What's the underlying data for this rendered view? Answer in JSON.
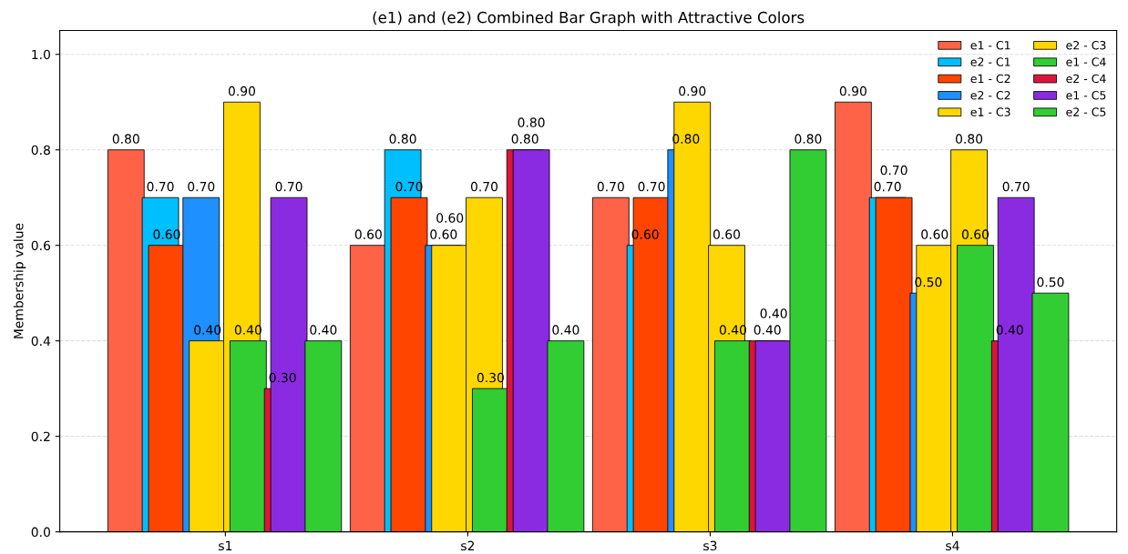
{
  "chart_data": {
    "type": "bar",
    "title": "(e1) and (e2) Combined Bar Graph with Attractive Colors",
    "ylabel": "Membership value",
    "categories": [
      "s1",
      "s2",
      "s3",
      "s4"
    ],
    "series": [
      {
        "name": "e1 - C1",
        "color": "#ff6347",
        "values": [
          0.8,
          0.6,
          0.7,
          0.9
        ],
        "value_labels": [
          "0.80",
          "0.60",
          "0.70",
          "0.90"
        ]
      },
      {
        "name": "e2 - C1",
        "color": "#00bfff",
        "values": [
          0.7,
          0.8,
          0.6,
          0.7
        ],
        "value_labels": [
          "0.70",
          "0.80",
          "0.60",
          "0.70"
        ]
      },
      {
        "name": "e1 - C2",
        "color": "#ff4500",
        "values": [
          0.6,
          0.7,
          0.7,
          0.7
        ],
        "value_labels": [
          "0.60",
          "0.70",
          "0.70",
          "0.70"
        ]
      },
      {
        "name": "e2 - C2",
        "color": "#1e90ff",
        "values": [
          0.7,
          0.6,
          0.8,
          0.5
        ],
        "value_labels": [
          "0.70",
          "0.60",
          "0.80",
          "0.50"
        ]
      },
      {
        "name": "e1 - C3",
        "color": "#ffd700",
        "values": [
          0.4,
          0.6,
          0.9,
          0.6
        ],
        "value_labels": [
          "0.40",
          "0.60",
          "0.90",
          "0.60"
        ]
      },
      {
        "name": "e2 - C3",
        "color": "#ffd700",
        "values": [
          0.9,
          0.7,
          0.6,
          0.8
        ],
        "value_labels": [
          "0.90",
          "0.70",
          "0.60",
          "0.80"
        ]
      },
      {
        "name": "e1 - C4",
        "color": "#32cd32",
        "values": [
          0.4,
          0.3,
          0.4,
          0.6
        ],
        "value_labels": [
          "0.40",
          "0.30",
          "0.40",
          "0.60"
        ]
      },
      {
        "name": "e2 - C4",
        "color": "#dc143c",
        "values": [
          0.3,
          0.8,
          0.4,
          0.4
        ],
        "value_labels": [
          "0.30",
          "0.80",
          "0.40",
          "0.40"
        ]
      },
      {
        "name": "e1 - C5",
        "color": "#8a2be2",
        "values": [
          0.7,
          0.8,
          0.4,
          0.7
        ],
        "value_labels": [
          "0.70",
          "0.80",
          "0.40",
          "0.70"
        ]
      },
      {
        "name": "e2 - C5",
        "color": "#32cd32",
        "values": [
          0.4,
          0.4,
          0.8,
          0.5
        ],
        "value_labels": [
          "0.40",
          "0.40",
          "0.80",
          "0.50"
        ]
      }
    ],
    "ylim": [
      0,
      1.05
    ],
    "yticks": [
      {
        "value": 0,
        "label": "0.0"
      },
      {
        "value": 0.2,
        "label": "0.2"
      },
      {
        "value": 0.4,
        "label": "0.4"
      },
      {
        "value": 0.6,
        "label": "0.6"
      },
      {
        "value": 0.8,
        "label": "0.8"
      },
      {
        "value": 1.0,
        "label": "1.0"
      }
    ],
    "grid": "y",
    "legend": "top right"
  }
}
